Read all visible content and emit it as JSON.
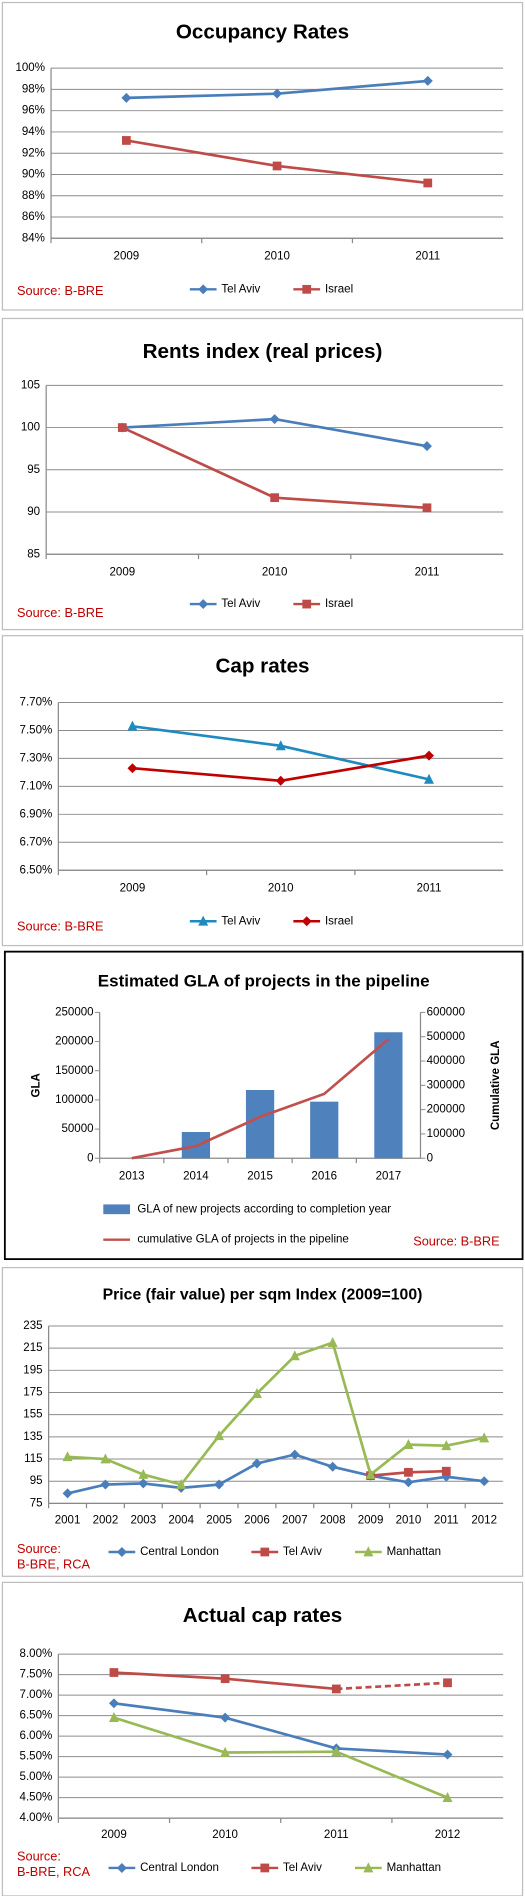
{
  "chart_data": [
    {
      "type": "line",
      "title": "Occupancy Rates",
      "source": [
        "Source: B-BRE"
      ],
      "categories": [
        "2009",
        "2010",
        "2011"
      ],
      "series": [
        {
          "name": "Tel Aviv",
          "color": "#4a7ebb",
          "marker": "diamond",
          "values": [
            97.2,
            97.6,
            98.8
          ]
        },
        {
          "name": "Israel",
          "color": "#be4b48",
          "marker": "square",
          "values": [
            93.2,
            90.8,
            89.2
          ]
        }
      ],
      "ylim": [
        84,
        100
      ],
      "yticks": [
        {
          "value": 84,
          "label": "84%"
        },
        {
          "value": 86,
          "label": "86%"
        },
        {
          "value": 88,
          "label": "88%"
        },
        {
          "value": 90,
          "label": "90%"
        },
        {
          "value": 92,
          "label": "92%"
        },
        {
          "value": 94,
          "label": "94%"
        },
        {
          "value": 96,
          "label": "96%"
        },
        {
          "value": 98,
          "label": "98%"
        },
        {
          "value": 100,
          "label": "100%"
        }
      ],
      "grid": true,
      "legend": "bottom"
    },
    {
      "type": "line",
      "title": "Rents index (real prices)",
      "source": [
        "Source: B-BRE"
      ],
      "categories": [
        "2009",
        "2010",
        "2011"
      ],
      "series": [
        {
          "name": "Tel Aviv",
          "color": "#4a7ebb",
          "marker": "diamond",
          "values": [
            100,
            101,
            97.8
          ]
        },
        {
          "name": "Israel",
          "color": "#be4b48",
          "marker": "square",
          "values": [
            100,
            91.7,
            90.5
          ]
        }
      ],
      "ylim": [
        85,
        105
      ],
      "yticks": [
        85,
        90,
        95,
        100,
        105
      ],
      "grid": true,
      "legend": "bottom"
    },
    {
      "type": "line",
      "title": "Cap rates",
      "source": [
        "Source: B-BRE"
      ],
      "categories": [
        "2009",
        "2010",
        "2011"
      ],
      "series": [
        {
          "name": "Tel Aviv",
          "color": "#1f8ac0",
          "marker": "triangle",
          "values": [
            7.53,
            7.39,
            7.15
          ]
        },
        {
          "name": "Israel",
          "color": "#c00000",
          "marker": "diamond",
          "values": [
            7.23,
            7.14,
            7.32
          ]
        }
      ],
      "ylim": [
        6.5,
        7.7
      ],
      "yticks": [
        {
          "value": 6.5,
          "label": "6.50%"
        },
        {
          "value": 6.7,
          "label": "6.70%"
        },
        {
          "value": 6.9,
          "label": "6.90%"
        },
        {
          "value": 7.1,
          "label": "7.10%"
        },
        {
          "value": 7.3,
          "label": "7.30%"
        },
        {
          "value": 7.5,
          "label": "7.50%"
        },
        {
          "value": 7.7,
          "label": "7.70%"
        }
      ],
      "grid": true,
      "legend": "bottom"
    },
    {
      "type": "bar",
      "title": "Estimated GLA of projects in the pipeline",
      "source": [
        "Source: B-BRE"
      ],
      "ylabel": "GLA",
      "y2label": "Cumulative GLA",
      "categories": [
        "2013",
        "2014",
        "2015",
        "2016",
        "2017"
      ],
      "series": [
        {
          "name": "GLA of new projects according to completion year",
          "color": "#4f81bd",
          "values": [
            0,
            45000,
            117000,
            97000,
            216000
          ]
        },
        {
          "name": "cumulative GLA of projects in the pipeline",
          "color": "#c0504d",
          "axis": "y2",
          "values": [
            0,
            50000,
            170000,
            265000,
            490000
          ]
        }
      ],
      "ylim": [
        0,
        250000
      ],
      "yticks": [
        0,
        50000,
        100000,
        150000,
        200000,
        250000
      ],
      "y2lim": [
        0,
        600000
      ],
      "y2ticks": [
        0,
        100000,
        200000,
        300000,
        400000,
        500000,
        600000
      ],
      "grid": false,
      "legend": "bottom"
    },
    {
      "type": "line",
      "title": "Price (fair value) per sqm Index (2009=100)",
      "source": [
        "Source:",
        "B-BRE, RCA"
      ],
      "categories": [
        "2001",
        "2002",
        "2003",
        "2004",
        "2005",
        "2006",
        "2007",
        "2008",
        "2009",
        "2010",
        "2011",
        "2012"
      ],
      "series": [
        {
          "name": "Central London",
          "color": "#4a7ebb",
          "marker": "diamond",
          "values": [
            84,
            92,
            93,
            89,
            92,
            111,
            119,
            108,
            100,
            94,
            99,
            95
          ]
        },
        {
          "name": "Tel Aviv",
          "color": "#be4b48",
          "marker": "square",
          "values": [
            null,
            null,
            null,
            null,
            null,
            null,
            null,
            null,
            100,
            103,
            104,
            null
          ]
        },
        {
          "name": "Manhattan",
          "color": "#98b954",
          "marker": "triangle",
          "values": [
            117,
            115,
            101,
            92,
            136,
            174,
            208,
            220,
            101,
            128,
            127,
            134
          ]
        }
      ],
      "ylim": [
        75,
        235
      ],
      "yticks": [
        75,
        95,
        115,
        135,
        155,
        175,
        195,
        215,
        235
      ],
      "grid": true,
      "legend": "bottom"
    },
    {
      "type": "line",
      "title": "Actual cap rates",
      "source": [
        "Source:",
        "B-BRE, RCA"
      ],
      "categories": [
        "2009",
        "2010",
        "2011",
        "2012"
      ],
      "series": [
        {
          "name": "Central London",
          "color": "#4a7ebb",
          "marker": "diamond",
          "values": [
            6.8,
            6.45,
            5.7,
            5.55
          ]
        },
        {
          "name": "Tel Aviv",
          "color": "#be4b48",
          "marker": "square",
          "values": [
            7.55,
            7.4,
            7.15,
            7.3
          ],
          "dashed_from": 2
        },
        {
          "name": "Manhattan",
          "color": "#98b954",
          "marker": "triangle",
          "values": [
            6.45,
            5.6,
            5.62,
            4.5
          ]
        }
      ],
      "ylim": [
        4,
        8
      ],
      "yticks": [
        {
          "value": 4,
          "label": "4.00%"
        },
        {
          "value": 4.5,
          "label": "4.50%"
        },
        {
          "value": 5,
          "label": "5.00%"
        },
        {
          "value": 5.5,
          "label": "5.50%"
        },
        {
          "value": 6,
          "label": "6.00%"
        },
        {
          "value": 6.5,
          "label": "6.50%"
        },
        {
          "value": 7,
          "label": "7.00%"
        },
        {
          "value": 7.5,
          "label": "7.50%"
        },
        {
          "value": 8,
          "label": "8.00%"
        }
      ],
      "grid": true,
      "legend": "bottom"
    }
  ]
}
